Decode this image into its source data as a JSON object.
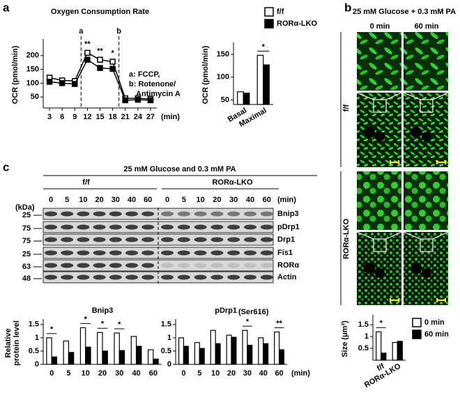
{
  "panel_labels": [
    "a",
    "b",
    "c"
  ],
  "chart_data": [
    {
      "type": "line",
      "title": "Oxygen Consumption Rate",
      "xlabel": "(min)",
      "ylabel": "OCR (pmol/min)",
      "x": [
        3,
        6,
        9,
        12,
        15,
        18,
        21,
        24,
        27
      ],
      "xlim": [
        1.5,
        28.5
      ],
      "xticks": [
        3,
        6,
        9,
        12,
        15,
        18,
        21,
        24,
        27
      ],
      "ylim": [
        10,
        250
      ],
      "yticks": [
        50,
        100,
        150,
        200
      ],
      "series": [
        {
          "color": "#ffffff",
          "values": [
            120,
            110,
            108,
            210,
            185,
            178,
            45,
            45,
            43
          ]
        },
        {
          "color": "#000000",
          "values": [
            105,
            100,
            97,
            185,
            155,
            152,
            38,
            40,
            38
          ]
        }
      ],
      "markers": [
        {
          "label": "a",
          "x": 10.5
        },
        {
          "label": "b",
          "x": 19.5
        }
      ],
      "annotations": [
        {
          "text": "**",
          "x": 12
        },
        {
          "text": "**",
          "x": 15
        },
        {
          "text": "*",
          "x": 18
        }
      ],
      "notes": [
        "a: FCCP,",
        "b: Rotenone/",
        "Antimycin A"
      ]
    },
    {
      "type": "bar",
      "ylabel": "OCR (pmol/min)",
      "categories": [
        "Basal",
        "Maximal"
      ],
      "ylim": [
        40,
        170
      ],
      "yticks": [
        50,
        100,
        150
      ],
      "series": [
        {
          "name": "f/f",
          "color": "#ffffff",
          "values": [
            68,
            148
          ]
        },
        {
          "name": "RORα-LKO",
          "color": "#000000",
          "values": [
            65,
            127
          ]
        }
      ],
      "legend": true,
      "rotate_labels": true,
      "annotations": [
        {
          "text": "*",
          "category": "Maximal"
        }
      ]
    },
    {
      "type": "bar",
      "ylabel": "Size (μm²)",
      "categories": [
        "f/f",
        "RORα-LKO"
      ],
      "ylim": [
        0,
        1.8
      ],
      "yticks": [
        0.5,
        1,
        1.5
      ],
      "series": [
        {
          "name": "0 min",
          "color": "#ffffff",
          "values": [
            1.2,
            0.75
          ]
        },
        {
          "name": "60 min",
          "color": "#000000",
          "values": [
            0.3,
            0.8
          ]
        }
      ],
      "legend": true,
      "rotate_labels": true,
      "annotations": [
        {
          "text": "*",
          "category": "f/f"
        }
      ]
    },
    {
      "type": "bar",
      "title": "Bnip3",
      "ylabel": [
        "Relative",
        "protein level"
      ],
      "categories": [
        "0",
        "5",
        "10",
        "20",
        "30",
        "40",
        "60"
      ],
      "ylim": [
        0,
        1.6
      ],
      "yticks": [
        0,
        0.5,
        1,
        1.5
      ],
      "series": [
        {
          "color": "#ffffff",
          "values": [
            1.0,
            0.88,
            1.38,
            1.2,
            1.18,
            1.05,
            0.55
          ]
        },
        {
          "color": "#000000",
          "values": [
            0.28,
            0.45,
            0.65,
            0.5,
            0.52,
            0.68,
            0.2
          ]
        }
      ],
      "annotations": [
        {
          "text": "*",
          "category": "0"
        },
        {
          "text": "*",
          "category": "10"
        },
        {
          "text": "*",
          "category": "20"
        },
        {
          "text": "*",
          "category": "30"
        }
      ]
    },
    {
      "type": "bar",
      "title": "pDrp1",
      "title_sub": "(Ser616)",
      "xlabel": "(min)",
      "categories": [
        "0",
        "5",
        "10",
        "20",
        "30",
        "40",
        "60"
      ],
      "ylim": [
        0,
        1.6
      ],
      "yticks": [
        0,
        0.5,
        1,
        1.5
      ],
      "series": [
        {
          "color": "#ffffff",
          "values": [
            1.0,
            0.82,
            1.28,
            1.1,
            1.28,
            1.0,
            1.22
          ]
        },
        {
          "color": "#000000",
          "values": [
            0.68,
            0.6,
            0.78,
            1.02,
            0.72,
            0.78,
            0.55
          ]
        }
      ],
      "annotations": [
        {
          "text": "*",
          "category": "30"
        },
        {
          "text": "**",
          "category": "60"
        }
      ]
    }
  ],
  "imaging": {
    "title": "25 mM Glucose + 0.3 mM PA",
    "columns": [
      "0 min",
      "60 min"
    ],
    "rows": [
      "f/f",
      "RORα-LKO"
    ]
  },
  "blot": {
    "title": "25 mM Glucose and 0.3 mM PA",
    "groups": [
      "f/f",
      "RORα-LKO"
    ],
    "lanes": [
      "0",
      "5",
      "10",
      "20",
      "30",
      "40",
      "60"
    ],
    "lane_unit": "(min)",
    "kda_unit": "(kDa)",
    "rows": [
      {
        "protein": "Bnip3",
        "kda": "25"
      },
      {
        "protein": "pDrp1",
        "kda": "75"
      },
      {
        "protein": "Drp1",
        "kda": "75"
      },
      {
        "protein": "Fis1",
        "kda": "25"
      },
      {
        "protein": "RORα",
        "kda": "63"
      },
      {
        "protein": "Actin",
        "kda": "48"
      }
    ]
  }
}
